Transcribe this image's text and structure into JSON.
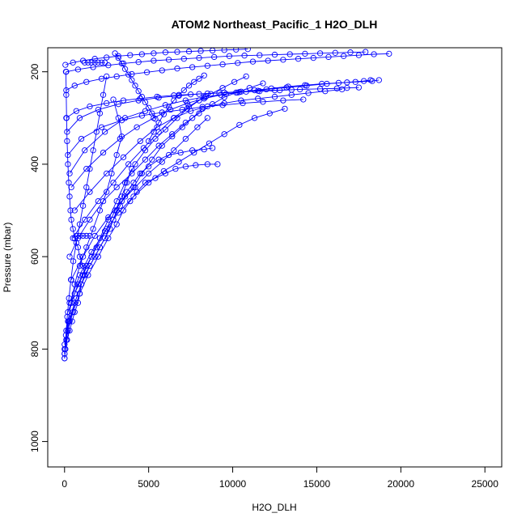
{
  "chart_data": {
    "type": "scatter",
    "title": "ATOM2 Northeast_Pacific_1 H2O_DLH",
    "xlabel": "H2O_DLH",
    "ylabel": "Pressure (mbar)",
    "xlim": [
      -1000,
      26000
    ],
    "ylim": [
      1055,
      148
    ],
    "y_reversed": true,
    "x_ticks": [
      0,
      5000,
      10000,
      15000,
      20000,
      25000
    ],
    "y_ticks": [
      200,
      400,
      600,
      800,
      1000
    ],
    "grid": false,
    "legend": "none",
    "marker": "open-circle",
    "connected": true,
    "color": "#0000ff",
    "series": [
      {
        "x": [
          0,
          50,
          150,
          300,
          450,
          600,
          800,
          900,
          1000,
          1200,
          1100,
          900,
          800,
          600,
          500,
          400,
          350,
          300,
          250,
          200,
          150,
          120,
          100,
          80
        ],
        "y": [
          820,
          800,
          780,
          760,
          740,
          720,
          700,
          680,
          660,
          640,
          620,
          600,
          580,
          560,
          540,
          520,
          500,
          470,
          440,
          400,
          350,
          300,
          250,
          200
        ]
      },
      {
        "x": [
          0,
          200,
          500,
          900,
          1400,
          2000,
          2600,
          3100,
          3500,
          3900,
          4300,
          4800,
          5400,
          6000,
          6600,
          7200,
          7800,
          8500,
          9100
        ],
        "y": [
          810,
          760,
          720,
          680,
          640,
          600,
          560,
          530,
          500,
          480,
          460,
          440,
          430,
          420,
          410,
          405,
          402,
          400,
          400
        ]
      },
      {
        "x": [
          0,
          300,
          700,
          1200,
          1800,
          2400,
          2900,
          3300,
          3700,
          4100,
          4500,
          5000,
          5600,
          6200,
          6900,
          7600,
          8300,
          8800
        ],
        "y": [
          800,
          740,
          690,
          640,
          600,
          560,
          520,
          490,
          460,
          440,
          420,
          405,
          390,
          380,
          375,
          370,
          368,
          365
        ]
      },
      {
        "x": [
          0,
          250,
          600,
          1000,
          1500,
          2100,
          2700,
          3100,
          3400,
          3700,
          4000
        ],
        "y": [
          790,
          740,
          700,
          660,
          620,
          580,
          540,
          500,
          470,
          440,
          410
        ]
      },
      {
        "x": [
          100,
          400,
          800,
          1300,
          1900,
          2500,
          3000,
          3600,
          4100,
          4600,
          5200,
          5800,
          6400,
          7000,
          7600,
          8200
        ],
        "y": [
          760,
          700,
          660,
          620,
          580,
          540,
          500,
          470,
          450,
          420,
          390,
          360,
          340,
          320,
          300,
          280
        ]
      },
      {
        "x": [
          200,
          600,
          1100,
          1600,
          2100,
          2600,
          3100,
          3600,
          4200,
          4800,
          5400,
          6000,
          6700,
          7300,
          8000,
          8700,
          9400,
          10100,
          10800
        ],
        "y": [
          720,
          680,
          640,
          600,
          560,
          520,
          480,
          440,
          400,
          370,
          345,
          325,
          300,
          280,
          262,
          248,
          235,
          222,
          210
        ]
      },
      {
        "x": [
          300,
          900,
          1600,
          2400,
          3200,
          4100,
          5000,
          5900,
          6800,
          7700,
          8600,
          9500,
          10400,
          11300,
          12200,
          13100
        ],
        "y": [
          700,
          640,
          590,
          545,
          505,
          470,
          440,
          415,
          395,
          375,
          355,
          335,
          315,
          300,
          290,
          280
        ]
      },
      {
        "x": [
          400,
          1100,
          1800,
          2600,
          3400,
          4200,
          5000,
          5800,
          6500,
          7200,
          7900,
          8500
        ],
        "y": [
          650,
          600,
          555,
          515,
          480,
          450,
          420,
          395,
          370,
          345,
          320,
          300
        ]
      },
      {
        "x": [
          300,
          800,
          1500,
          2300,
          3100,
          4000,
          4800,
          5600,
          6400,
          7200,
          8000,
          8800,
          9500,
          10200,
          11000,
          11800
        ],
        "y": [
          600,
          560,
          520,
          480,
          450,
          420,
          390,
          360,
          335,
          310,
          290,
          270,
          255,
          245,
          235,
          225
        ]
      },
      {
        "x": [
          500,
          1200,
          2000,
          2900,
          3800,
          4700,
          5600,
          6500,
          7400,
          8300
        ],
        "y": [
          560,
          520,
          480,
          440,
          400,
          365,
          330,
          300,
          275,
          255
        ]
      },
      {
        "x": [
          600,
          1500,
          2500,
          3500,
          4500,
          5500,
          6500,
          7500,
          8500,
          9500,
          10500,
          11500,
          12500,
          13500,
          14500,
          15500,
          16500
        ],
        "y": [
          500,
          460,
          420,
          385,
          350,
          320,
          300,
          285,
          275,
          268,
          262,
          258,
          254,
          250,
          246,
          242,
          238
        ]
      },
      {
        "x": [
          400,
          1300,
          2300,
          3300,
          4300,
          5300,
          6300,
          7300,
          8300,
          9300,
          10300,
          11300,
          12300,
          13300,
          14300,
          15300,
          16300,
          17300,
          18300,
          18700
        ],
        "y": [
          450,
          410,
          375,
          345,
          320,
          300,
          282,
          268,
          258,
          250,
          245,
          240,
          236,
          232,
          229,
          226,
          224,
          222,
          220,
          218
        ]
      },
      {
        "x": [
          300,
          1200,
          2400,
          3600,
          4800,
          6000,
          7200,
          8400,
          9600,
          10800,
          12000,
          13200,
          14400,
          15600,
          16800,
          17800,
          18200
        ],
        "y": [
          420,
          370,
          330,
          300,
          285,
          272,
          262,
          254,
          248,
          243,
          238,
          234,
          230,
          226,
          223,
          220,
          218
        ]
      },
      {
        "x": [
          200,
          1000,
          2200,
          3400,
          4600,
          5800,
          7000,
          8200,
          9400,
          10600,
          11800,
          13000,
          14200
        ],
        "y": [
          380,
          345,
          320,
          305,
          295,
          288,
          282,
          276,
          272,
          268,
          265,
          262,
          260
        ]
      },
      {
        "x": [
          150,
          900,
          2000,
          3200,
          4400,
          5600,
          6800,
          8000,
          9200,
          10400,
          11600,
          12800,
          14000,
          15200,
          16200,
          16800,
          17500
        ],
        "y": [
          330,
          300,
          282,
          270,
          262,
          256,
          252,
          248,
          246,
          244,
          242,
          240,
          238,
          237,
          236,
          235,
          234
        ]
      },
      {
        "x": [
          100,
          700,
          1500,
          2500,
          3500,
          4500,
          5500,
          6500,
          7500,
          8500,
          9500,
          10500,
          11500,
          12500,
          13500
        ],
        "y": [
          300,
          285,
          275,
          268,
          262,
          258,
          254,
          251,
          249,
          247,
          245,
          243,
          241,
          240,
          239
        ]
      },
      {
        "x": [
          100,
          600,
          1300,
          2200,
          3100,
          4000,
          4900,
          5800,
          6700,
          7600,
          8500,
          9400,
          10300,
          11200,
          12100,
          13000,
          13900,
          14800,
          15700,
          16600,
          17500,
          18400,
          19300
        ],
        "y": [
          240,
          230,
          222,
          215,
          210,
          205,
          201,
          197,
          193,
          190,
          187,
          184,
          181,
          178,
          176,
          174,
          172,
          170,
          168,
          166,
          164,
          162,
          161
        ]
      },
      {
        "x": [
          100,
          800,
          1700,
          2600,
          3500,
          4400,
          5300,
          6200,
          7100,
          8000,
          8900,
          9800,
          10700,
          11600,
          12500,
          13400,
          14300,
          15200,
          16100,
          17000,
          17900
        ],
        "y": [
          200,
          195,
          190,
          186,
          182,
          179,
          176,
          174,
          172,
          170,
          168,
          166,
          165,
          164,
          163,
          162,
          161,
          160,
          159,
          158,
          157
        ]
      },
      {
        "x": [
          50,
          500,
          1100,
          1800,
          2500,
          3200,
          3900,
          4600,
          5300,
          6000,
          6700,
          7400,
          8100,
          8800,
          9500,
          10200,
          10900
        ],
        "y": [
          185,
          180,
          176,
          172,
          169,
          166,
          164,
          162,
          160,
          158,
          157,
          156,
          155,
          154,
          153,
          152,
          151
        ]
      },
      {
        "x": [
          1200,
          1400,
          1600,
          1800,
          2000,
          2200,
          2400
        ],
        "y": [
          180,
          180,
          180,
          180,
          180,
          180,
          180
        ]
      },
      {
        "x": [
          700,
          900,
          1100,
          1300,
          1500
        ],
        "y": [
          555,
          555,
          555,
          555,
          555
        ]
      },
      {
        "x": [
          0,
          100,
          200,
          400,
          600,
          900,
          1300,
          1700,
          2100,
          2500,
          2800,
          3100,
          3400,
          3200,
          2900
        ],
        "y": [
          820,
          780,
          740,
          700,
          660,
          620,
          580,
          540,
          500,
          460,
          420,
          380,
          340,
          300,
          260
        ]
      },
      {
        "x": [
          0,
          80,
          160,
          260,
          380,
          520,
          700,
          900,
          1100,
          1300,
          1500,
          1700,
          1900,
          2100,
          2300,
          2500
        ],
        "y": [
          810,
          770,
          730,
          690,
          650,
          610,
          570,
          530,
          490,
          450,
          410,
          370,
          330,
          290,
          250,
          210
        ]
      },
      {
        "x": [
          3000,
          3200,
          3400,
          3600,
          3800,
          4000,
          4200,
          4400,
          4600,
          4800,
          5000,
          5200,
          5400
        ],
        "y": [
          160,
          170,
          182,
          194,
          206,
          218,
          230,
          242,
          254,
          266,
          278,
          290,
          302
        ]
      },
      {
        "x": [
          5000,
          5300,
          5600,
          5900,
          6200,
          6500,
          6800,
          7100,
          7400,
          7700,
          8000,
          8300
        ],
        "y": [
          350,
          330,
          310,
          292,
          276,
          262,
          250,
          240,
          230,
          222,
          215,
          208
        ]
      }
    ]
  }
}
